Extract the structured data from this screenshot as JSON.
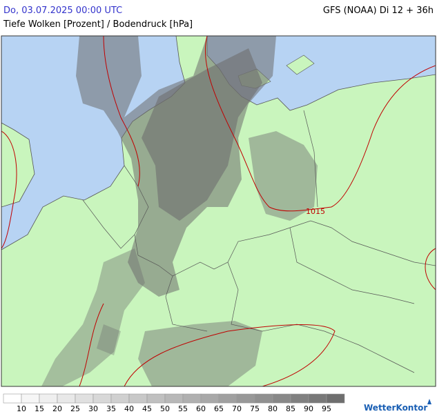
{
  "header": {
    "datetime": "Do, 03.07.2025 00:00 UTC",
    "model": "GFS (NOAA) Di 12 + 36h",
    "subtitle": "Tiefe Wolken [Prozent] / Bodendruck [hPa]"
  },
  "map": {
    "isobar_labels": [
      "1015"
    ]
  },
  "legend": {
    "labels": [
      10,
      15,
      20,
      25,
      30,
      35,
      40,
      45,
      50,
      55,
      60,
      65,
      70,
      75,
      80,
      85,
      90,
      95
    ],
    "colors": [
      "#ffffff",
      "#f6f6f6",
      "#efefef",
      "#e8e8e8",
      "#e0e0e0",
      "#d8d8d8",
      "#d0d0d0",
      "#c8c8c8",
      "#c0c0c0",
      "#b8b8b8",
      "#b0b0b0",
      "#a8a8a8",
      "#a0a0a0",
      "#989898",
      "#909090",
      "#888888",
      "#808080",
      "#787878",
      "#6e6e6e"
    ]
  },
  "logo": "WetterKontor"
}
